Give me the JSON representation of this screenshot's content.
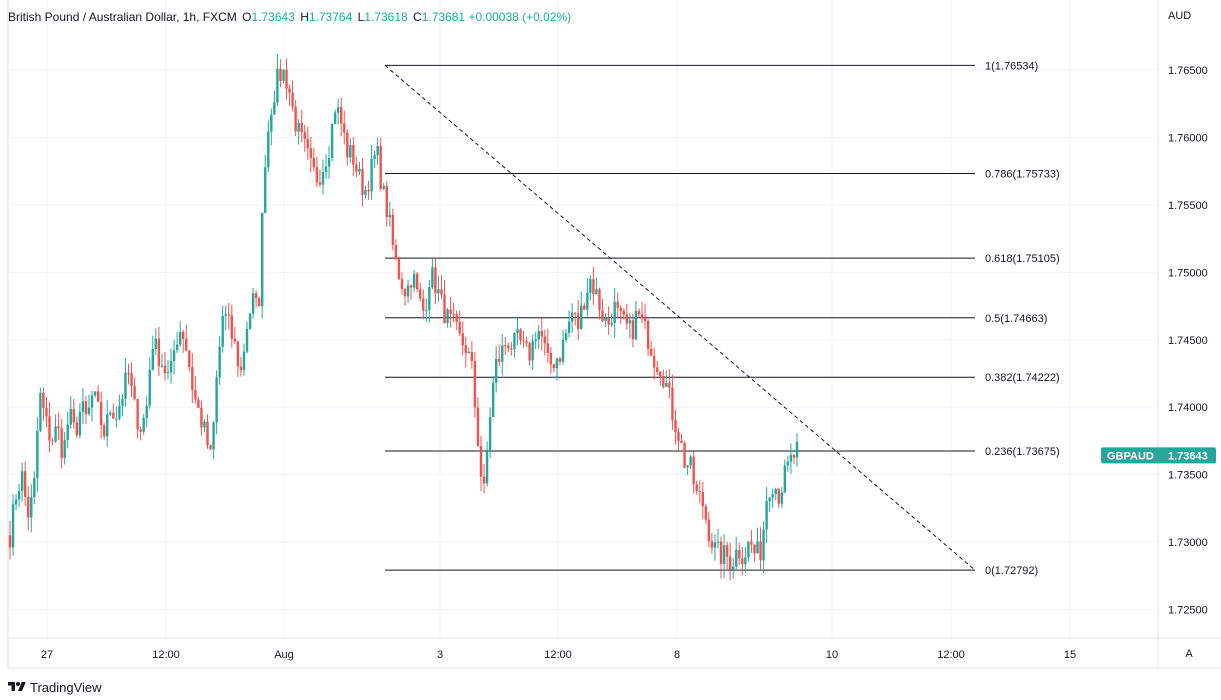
{
  "header": {
    "symbol": "British Pound / Australian Dollar, 1h, FXCM",
    "open_label": "O",
    "open": "1.73643",
    "high_label": "H",
    "high": "1.73764",
    "low_label": "L",
    "low": "1.73618",
    "close_label": "C",
    "close": "1.73681",
    "change": "+0.00038 (+0.02%)"
  },
  "axis": {
    "currency": "AUD"
  },
  "price_badge": {
    "name": "GBPAUD",
    "value": "1.73643",
    "color": "#26a69a"
  },
  "footer": {
    "brand": "TradingView",
    "auto_label": "A"
  },
  "colors": {
    "up": "#26a69a",
    "down": "#ef5350",
    "line": "#131722",
    "grid": "#f0f3fa"
  },
  "chart_data": {
    "type": "candlestick",
    "symbol": "GBPAUD",
    "interval": "1h",
    "y_ticks": [
      1.765,
      1.76,
      1.755,
      1.75,
      1.745,
      1.74,
      1.735,
      1.73,
      1.725
    ],
    "y_tick_labels": [
      "1.76500",
      "1.76000",
      "1.75500",
      "1.75000",
      "1.74500",
      "1.74000",
      "1.73500",
      "1.73000",
      "1.72500"
    ],
    "ylim": [
      1.7215,
      1.769
    ],
    "x_ticks": [
      "27",
      "12:00",
      "Aug",
      "3",
      "12:00",
      "8",
      "10",
      "12:00",
      "15"
    ],
    "fibonacci": [
      {
        "ratio": "1",
        "price": 1.76534,
        "label": "1(1.76534)"
      },
      {
        "ratio": "0.786",
        "price": 1.75733,
        "label": "0.786(1.75733)"
      },
      {
        "ratio": "0.618",
        "price": 1.75105,
        "label": "0.618(1.75105)"
      },
      {
        "ratio": "0.5",
        "price": 1.74663,
        "label": "0.5(1.74663)"
      },
      {
        "ratio": "0.382",
        "price": 1.74222,
        "label": "0.382(1.74222)"
      },
      {
        "ratio": "0.236",
        "price": 1.73675,
        "label": "0.236(1.73675)"
      },
      {
        "ratio": "0",
        "price": 1.72792,
        "label": "0(1.72792)"
      }
    ],
    "trendline": {
      "from_price": 1.76534,
      "to_price": 1.72792,
      "style": "dashed"
    },
    "path": [
      1.7305,
      1.7335,
      1.735,
      1.732,
      1.7335,
      1.741,
      1.739,
      1.7375,
      1.7385,
      1.7365,
      1.7395,
      1.738,
      1.74,
      1.739,
      1.741,
      1.7395,
      1.738,
      1.74,
      1.7395,
      1.741,
      1.7425,
      1.74,
      1.7385,
      1.7395,
      1.745,
      1.744,
      1.743,
      1.742,
      1.745,
      1.746,
      1.744,
      1.741,
      1.7395,
      1.738,
      1.736,
      1.7425,
      1.747,
      1.746,
      1.7445,
      1.7425,
      1.746,
      1.748,
      1.747,
      1.758,
      1.762,
      1.764,
      1.765,
      1.764,
      1.7615,
      1.76,
      1.759,
      1.7575,
      1.757,
      1.758,
      1.7595,
      1.7625,
      1.761,
      1.759,
      1.7585,
      1.757,
      1.756,
      1.7575,
      1.759,
      1.756,
      1.754,
      1.751,
      1.7495,
      1.7485,
      1.75,
      1.748,
      1.747,
      1.75,
      1.749,
      1.7475,
      1.7465,
      1.746,
      1.745,
      1.7445,
      1.743,
      1.738,
      1.733,
      1.739,
      1.743,
      1.744,
      1.745,
      1.7445,
      1.745,
      1.744,
      1.744,
      1.746,
      1.745,
      1.743,
      1.7435,
      1.744,
      1.7455,
      1.747,
      1.746,
      1.748,
      1.7495,
      1.7485,
      1.747,
      1.746,
      1.7475,
      1.7465,
      1.746,
      1.7455,
      1.747,
      1.746,
      1.745,
      1.7435,
      1.743,
      1.7415,
      1.7395,
      1.738,
      1.736,
      1.7355,
      1.7335,
      1.733,
      1.731,
      1.7295,
      1.729,
      1.729,
      1.7285,
      1.7295,
      1.729,
      1.73,
      1.729,
      1.7295,
      1.734,
      1.7345,
      1.7335,
      1.735,
      1.736,
      1.7368
    ]
  }
}
